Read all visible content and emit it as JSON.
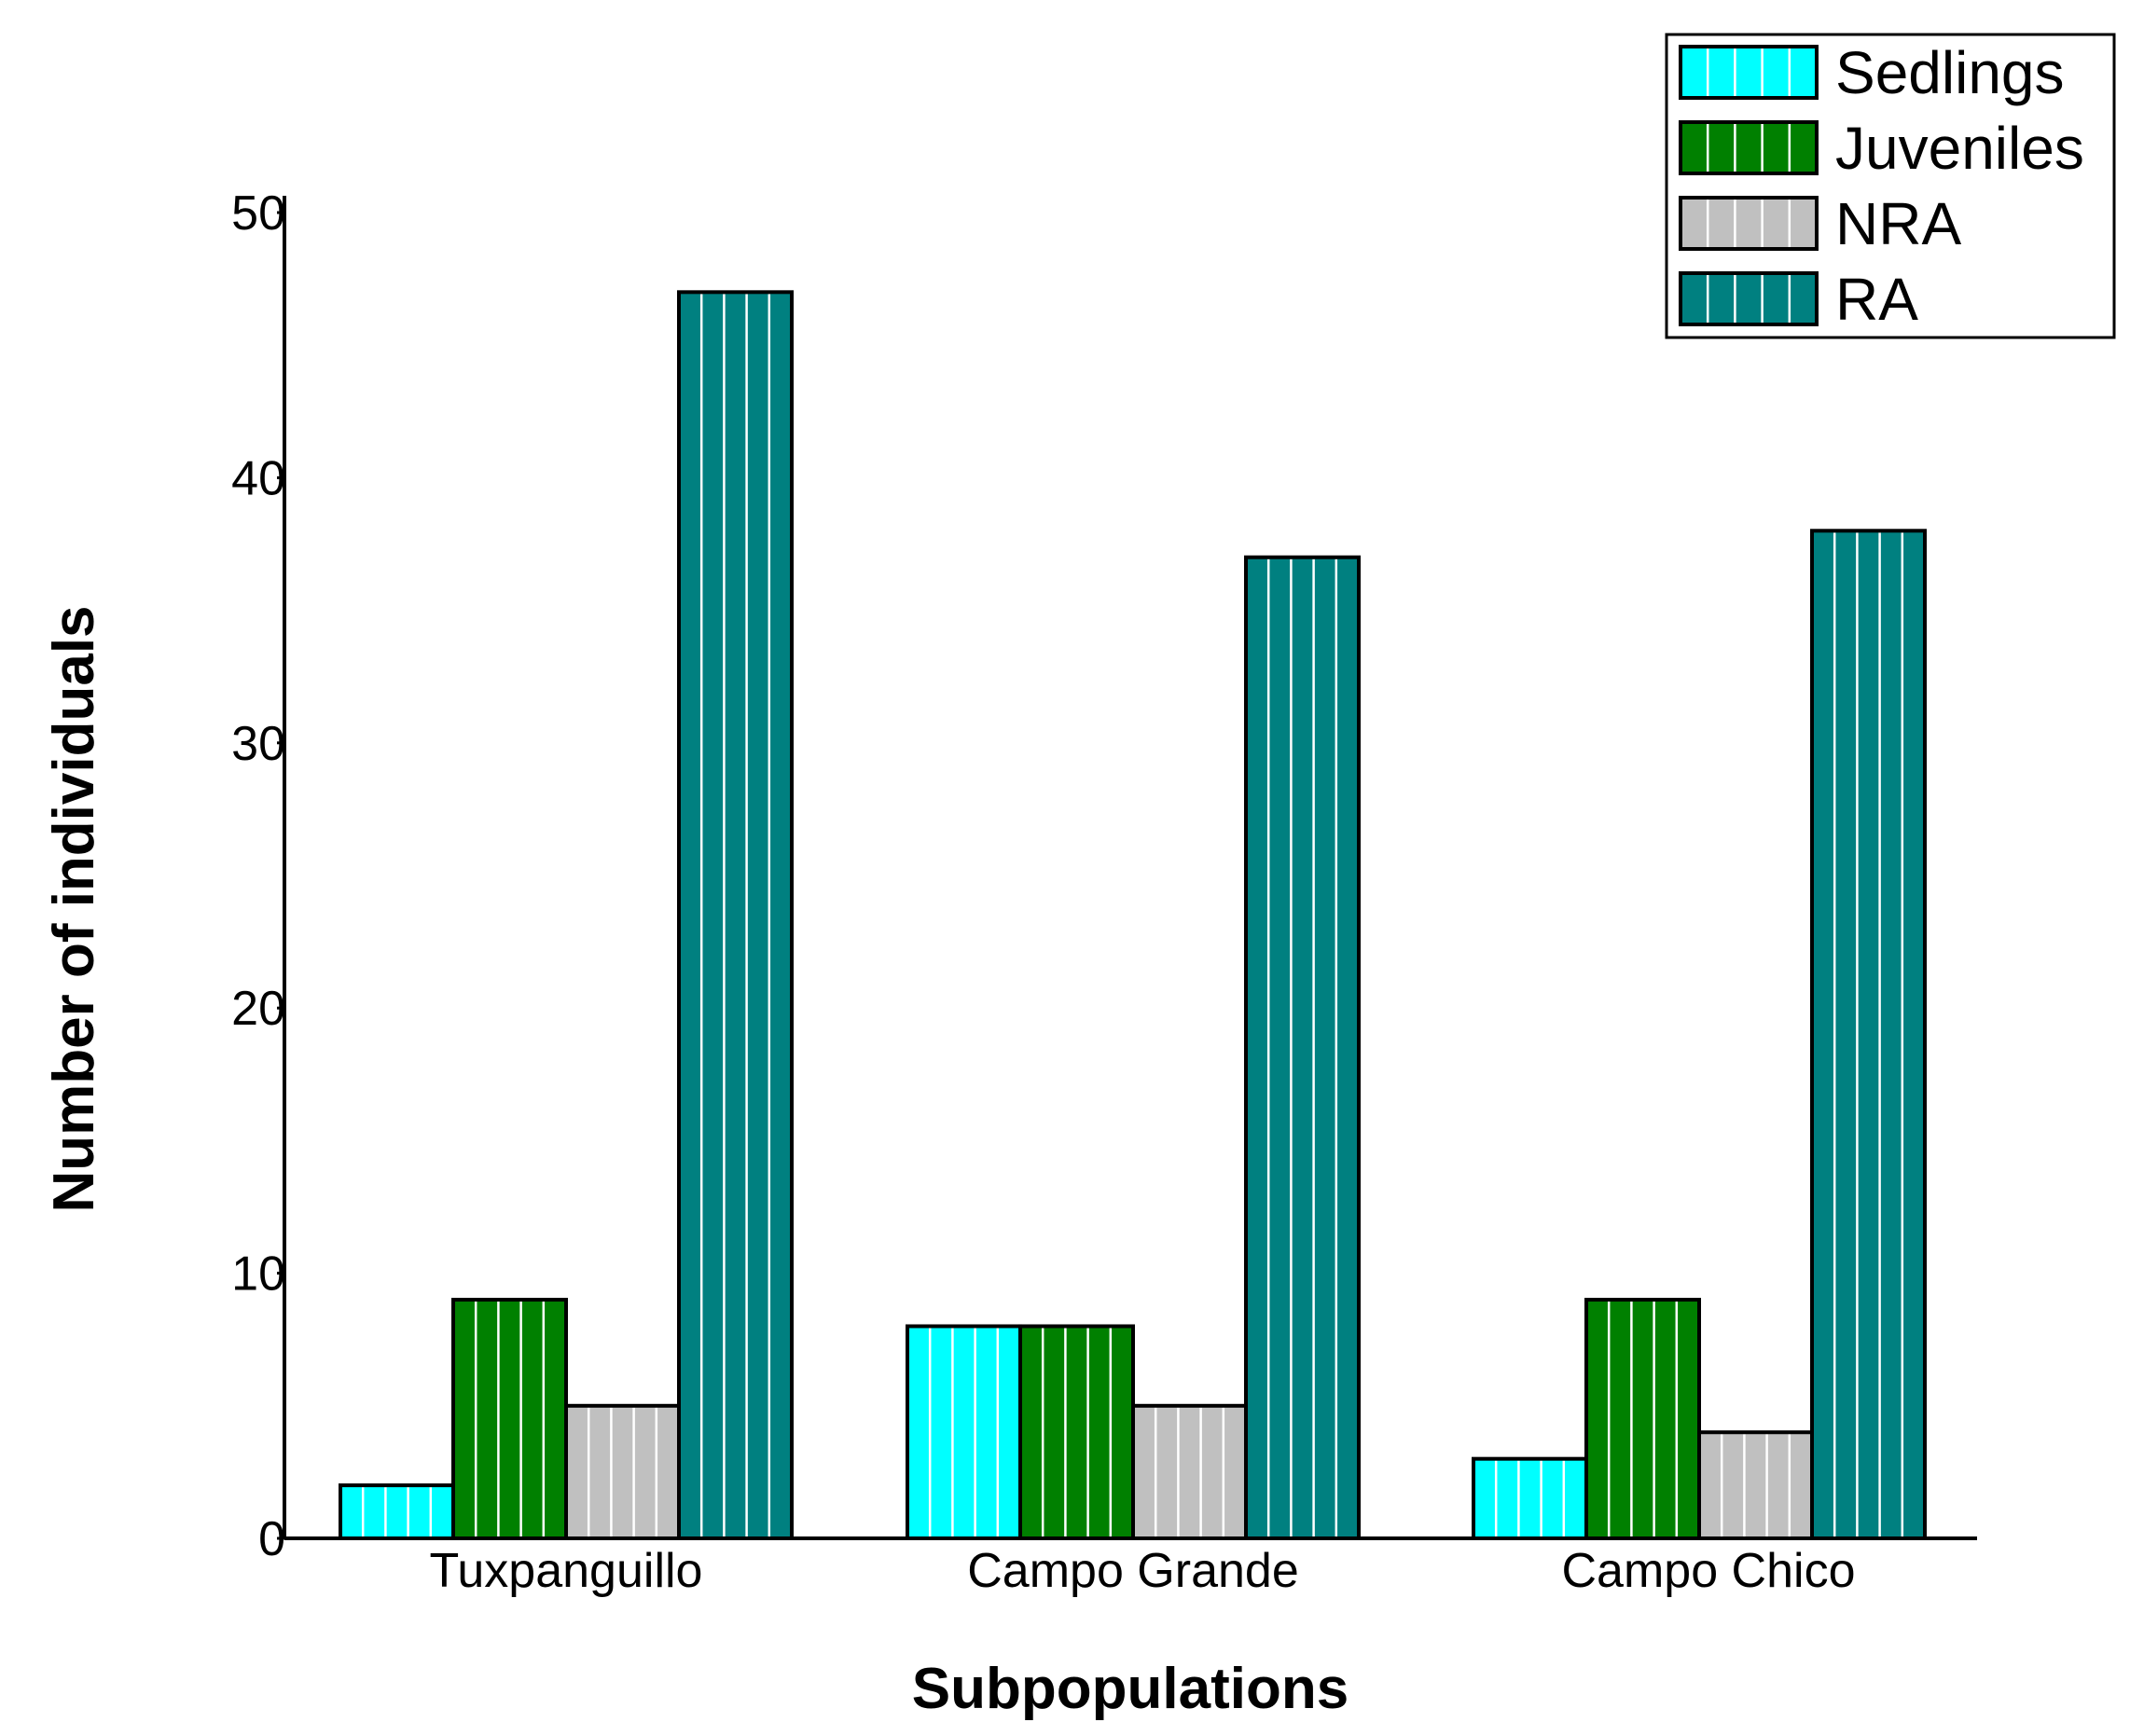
{
  "chart_data": {
    "type": "bar",
    "title": "",
    "xlabel": "Subpopulations",
    "ylabel": "Number of individuals",
    "categories": [
      "Tuxpanguillo",
      "Campo Grande",
      "Campo Chico"
    ],
    "series": [
      {
        "name": "Sedlings",
        "color": "#00FFFF",
        "values": [
          2,
          8,
          3
        ]
      },
      {
        "name": "Juveniles",
        "color": "#008000",
        "values": [
          9,
          8,
          9
        ]
      },
      {
        "name": "NRA",
        "color": "#C0C0C0",
        "values": [
          5,
          5,
          4
        ]
      },
      {
        "name": "RA",
        "color": "#008080",
        "values": [
          47,
          37,
          38
        ]
      }
    ],
    "ylim": [
      0,
      50
    ],
    "yticks": [
      0,
      10,
      20,
      30,
      40,
      50
    ],
    "legend_position": "top-right",
    "bar_pattern": "vertical white stripes",
    "grid": false
  }
}
